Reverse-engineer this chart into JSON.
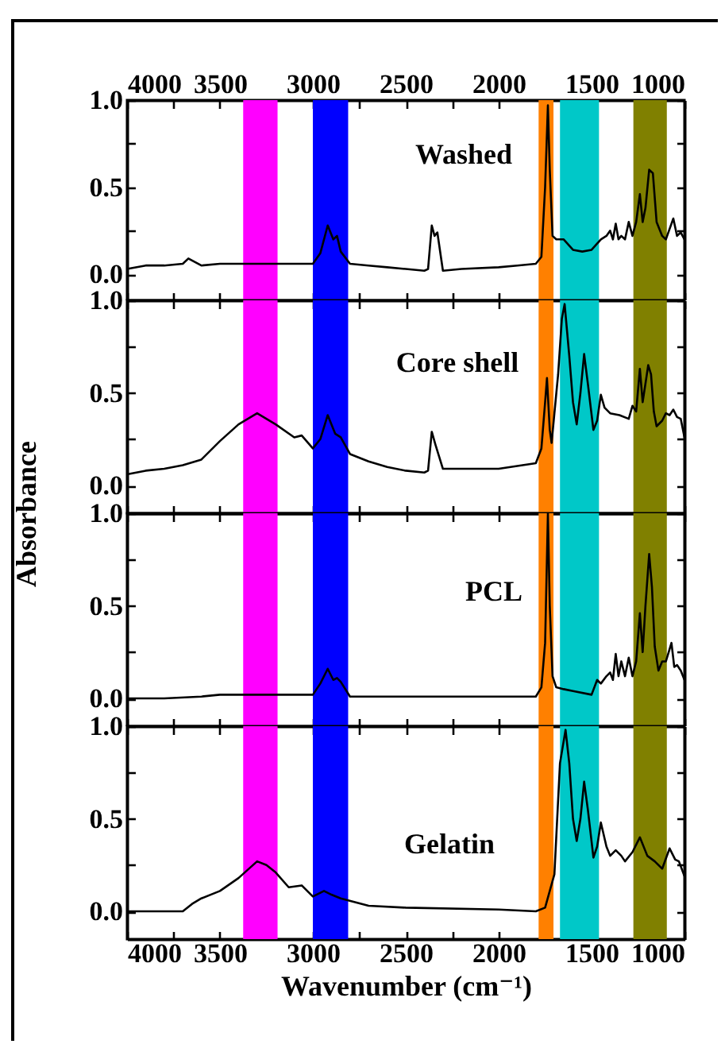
{
  "chart_data": [
    {
      "type": "line",
      "xlim": [
        4000,
        1000
      ],
      "xticks": [
        4000,
        {
          "value": 3750,
          "label": null
        },
        3500,
        {
          "value": 3250,
          "label": null
        },
        3000,
        {
          "value": 2750,
          "label": null
        },
        2500,
        {
          "value": 2250,
          "label": null
        },
        2000,
        {
          "value": 1750,
          "label": null
        },
        1500,
        {
          "value": 1250,
          "label": null
        },
        1000
      ],
      "ylim": [
        -0.15,
        1.0
      ],
      "yticks": [
        {
          "value": 0,
          "label": "0.0"
        },
        {
          "value": 0.25,
          "label": null
        },
        {
          "value": 0.5,
          "label": "0.5"
        },
        {
          "value": 0.75,
          "label": null
        },
        {
          "value": 1,
          "label": "1.0"
        }
      ],
      "grid": false,
      "bands": [
        {
          "axis": "x",
          "from": 3375,
          "to": 3190,
          "color": "#ff00ff"
        },
        {
          "axis": "x",
          "from": 3000,
          "to": 2810,
          "color": "#0000ff"
        },
        {
          "axis": "x",
          "from": 1785,
          "to": 1705,
          "color": "#ff8000"
        },
        {
          "axis": "x",
          "from": 1670,
          "to": 1460,
          "color": "#00c8c8"
        },
        {
          "axis": "x",
          "from": 1275,
          "to": 1095,
          "color": "#808000"
        }
      ],
      "series": [
        {
          "name": "Washed",
          "color": "#000000",
          "x": [
            4000,
            3900,
            3800,
            3700,
            3670,
            3600,
            3500,
            3400,
            3300,
            3200,
            3100,
            3000,
            2960,
            2920,
            2890,
            2870,
            2850,
            2800,
            2700,
            2600,
            2500,
            2400,
            2380,
            2360,
            2345,
            2330,
            2300,
            2200,
            2000,
            1900,
            1800,
            1770,
            1750,
            1735,
            1725,
            1710,
            1690,
            1650,
            1600,
            1550,
            1500,
            1450,
            1420,
            1400,
            1385,
            1370,
            1355,
            1340,
            1320,
            1300,
            1280,
            1260,
            1240,
            1225,
            1210,
            1190,
            1170,
            1150,
            1120,
            1100,
            1080,
            1060,
            1040,
            1020,
            1000
          ],
          "values": [
            0.03,
            0.05,
            0.05,
            0.06,
            0.09,
            0.05,
            0.06,
            0.06,
            0.06,
            0.06,
            0.06,
            0.06,
            0.12,
            0.28,
            0.2,
            0.22,
            0.13,
            0.06,
            0.05,
            0.04,
            0.03,
            0.02,
            0.03,
            0.28,
            0.22,
            0.24,
            0.02,
            0.03,
            0.04,
            0.05,
            0.06,
            0.1,
            0.5,
            0.97,
            0.6,
            0.22,
            0.2,
            0.2,
            0.14,
            0.13,
            0.14,
            0.2,
            0.22,
            0.25,
            0.2,
            0.29,
            0.2,
            0.22,
            0.2,
            0.3,
            0.22,
            0.3,
            0.46,
            0.3,
            0.38,
            0.6,
            0.58,
            0.3,
            0.22,
            0.2,
            0.26,
            0.32,
            0.22,
            0.24,
            0.2
          ]
        }
      ]
    },
    {
      "type": "line",
      "xlim": [
        4000,
        1000
      ],
      "xticks": [
        4000,
        {
          "value": 3750,
          "label": null
        },
        3500,
        {
          "value": 3250,
          "label": null
        },
        3000,
        {
          "value": 2750,
          "label": null
        },
        2500,
        {
          "value": 2250,
          "label": null
        },
        2000,
        {
          "value": 1750,
          "label": null
        },
        1500,
        {
          "value": 1250,
          "label": null
        },
        1000
      ],
      "ylim": [
        -0.15,
        1.0
      ],
      "yticks": [
        {
          "value": 0,
          "label": "0.0"
        },
        {
          "value": 0.25,
          "label": null
        },
        {
          "value": 0.5,
          "label": "0.5"
        },
        {
          "value": 0.75,
          "label": null
        },
        {
          "value": 1,
          "label": "1.0"
        }
      ],
      "tick_labels": "y",
      "grid": false,
      "ylabel": "Absorbance",
      "bands": [
        {
          "axis": "x",
          "from": 3375,
          "to": 3190,
          "color": "#ff00ff"
        },
        {
          "axis": "x",
          "from": 3000,
          "to": 2810,
          "color": "#0000ff"
        },
        {
          "axis": "x",
          "from": 1785,
          "to": 1705,
          "color": "#ff8000"
        },
        {
          "axis": "x",
          "from": 1670,
          "to": 1460,
          "color": "#00c8c8"
        },
        {
          "axis": "x",
          "from": 1275,
          "to": 1095,
          "color": "#808000"
        }
      ],
      "series": [
        {
          "name": "Core shell",
          "color": "#000000",
          "x": [
            4000,
            3900,
            3800,
            3700,
            3600,
            3500,
            3400,
            3300,
            3200,
            3100,
            3060,
            3000,
            2960,
            2920,
            2880,
            2850,
            2800,
            2700,
            2600,
            2500,
            2400,
            2380,
            2360,
            2340,
            2300,
            2200,
            2000,
            1800,
            1770,
            1750,
            1740,
            1725,
            1715,
            1700,
            1680,
            1660,
            1645,
            1620,
            1600,
            1580,
            1560,
            1540,
            1520,
            1490,
            1470,
            1450,
            1430,
            1400,
            1350,
            1300,
            1280,
            1260,
            1240,
            1225,
            1210,
            1195,
            1180,
            1165,
            1150,
            1120,
            1100,
            1080,
            1060,
            1040,
            1020,
            1000
          ],
          "values": [
            0.06,
            0.08,
            0.09,
            0.11,
            0.14,
            0.24,
            0.33,
            0.39,
            0.33,
            0.26,
            0.27,
            0.2,
            0.25,
            0.38,
            0.28,
            0.26,
            0.17,
            0.13,
            0.1,
            0.08,
            0.07,
            0.08,
            0.29,
            0.22,
            0.09,
            0.09,
            0.09,
            0.12,
            0.2,
            0.45,
            0.58,
            0.3,
            0.23,
            0.39,
            0.6,
            0.9,
            0.98,
            0.7,
            0.45,
            0.33,
            0.5,
            0.71,
            0.55,
            0.3,
            0.35,
            0.49,
            0.42,
            0.39,
            0.38,
            0.36,
            0.43,
            0.4,
            0.63,
            0.45,
            0.55,
            0.65,
            0.6,
            0.4,
            0.32,
            0.35,
            0.39,
            0.38,
            0.41,
            0.37,
            0.36,
            0.26
          ]
        }
      ]
    },
    {
      "type": "line",
      "xlim": [
        4000,
        1000
      ],
      "xticks": [
        4000,
        {
          "value": 3750,
          "label": null
        },
        3500,
        {
          "value": 3250,
          "label": null
        },
        3000,
        {
          "value": 2750,
          "label": null
        },
        2500,
        {
          "value": 2250,
          "label": null
        },
        2000,
        {
          "value": 1750,
          "label": null
        },
        1500,
        {
          "value": 1250,
          "label": null
        },
        1000
      ],
      "ylim": [
        -0.15,
        1.0
      ],
      "yticks": [
        {
          "value": 0,
          "label": "0.0"
        },
        {
          "value": 0.25,
          "label": null
        },
        {
          "value": 0.5,
          "label": "0.5"
        },
        {
          "value": 0.75,
          "label": null
        },
        {
          "value": 1,
          "label": "1.0"
        }
      ],
      "tick_labels": "y",
      "grid": false,
      "bands": [
        {
          "axis": "x",
          "from": 3375,
          "to": 3190,
          "color": "#ff00ff"
        },
        {
          "axis": "x",
          "from": 3000,
          "to": 2810,
          "color": "#0000ff"
        },
        {
          "axis": "x",
          "from": 1785,
          "to": 1705,
          "color": "#ff8000"
        },
        {
          "axis": "x",
          "from": 1670,
          "to": 1460,
          "color": "#00c8c8"
        },
        {
          "axis": "x",
          "from": 1275,
          "to": 1095,
          "color": "#808000"
        }
      ],
      "series": [
        {
          "name": "PCL",
          "color": "#000000",
          "x": [
            4000,
            3800,
            3600,
            3500,
            3000,
            2960,
            2920,
            2890,
            2870,
            2850,
            2800,
            2500,
            2350,
            2000,
            1800,
            1770,
            1750,
            1735,
            1725,
            1710,
            1690,
            1650,
            1600,
            1500,
            1470,
            1450,
            1420,
            1400,
            1385,
            1370,
            1355,
            1340,
            1320,
            1300,
            1280,
            1260,
            1240,
            1225,
            1210,
            1190,
            1175,
            1160,
            1140,
            1120,
            1100,
            1085,
            1070,
            1055,
            1040,
            1020,
            1000
          ],
          "values": [
            0,
            0,
            0.01,
            0.02,
            0.02,
            0.08,
            0.16,
            0.1,
            0.11,
            0.09,
            0.01,
            0.01,
            0.01,
            0.01,
            0.01,
            0.06,
            0.3,
            1.0,
            0.5,
            0.12,
            0.06,
            0.05,
            0.04,
            0.02,
            0.1,
            0.08,
            0.12,
            0.14,
            0.1,
            0.24,
            0.12,
            0.2,
            0.12,
            0.22,
            0.12,
            0.2,
            0.46,
            0.25,
            0.5,
            0.78,
            0.6,
            0.28,
            0.15,
            0.2,
            0.2,
            0.25,
            0.3,
            0.17,
            0.18,
            0.15,
            0.1
          ]
        }
      ]
    },
    {
      "type": "line",
      "xlim": [
        4000,
        1000
      ],
      "xticks": [
        4000,
        {
          "value": 3750,
          "label": null
        },
        3500,
        {
          "value": 3250,
          "label": null
        },
        3000,
        {
          "value": 2750,
          "label": null
        },
        2500,
        {
          "value": 2250,
          "label": null
        },
        2000,
        {
          "value": 1750,
          "label": null
        },
        1500,
        {
          "value": 1250,
          "label": null
        },
        1000
      ],
      "ylim": [
        -0.15,
        1.0
      ],
      "yticks": [
        {
          "value": 0,
          "label": "0.0"
        },
        {
          "value": 0.25,
          "label": null
        },
        {
          "value": 0.5,
          "label": "0.5"
        },
        {
          "value": 0.75,
          "label": null
        },
        {
          "value": 1,
          "label": "1.0"
        }
      ],
      "grid": false,
      "xlabel": "Wavenumber (cm⁻¹)",
      "bands": [
        {
          "axis": "x",
          "from": 3375,
          "to": 3190,
          "color": "#ff00ff"
        },
        {
          "axis": "x",
          "from": 3000,
          "to": 2810,
          "color": "#0000ff"
        },
        {
          "axis": "x",
          "from": 1785,
          "to": 1705,
          "color": "#ff8000"
        },
        {
          "axis": "x",
          "from": 1670,
          "to": 1460,
          "color": "#00c8c8"
        },
        {
          "axis": "x",
          "from": 1275,
          "to": 1095,
          "color": "#808000"
        }
      ],
      "series": [
        {
          "name": "Gelatin",
          "color": "#000000",
          "x": [
            4000,
            3800,
            3700,
            3650,
            3600,
            3500,
            3400,
            3300,
            3250,
            3200,
            3130,
            3060,
            3000,
            2940,
            2900,
            2850,
            2700,
            2500,
            2000,
            1800,
            1750,
            1700,
            1670,
            1640,
            1620,
            1600,
            1580,
            1560,
            1540,
            1520,
            1490,
            1470,
            1450,
            1420,
            1400,
            1370,
            1340,
            1320,
            1280,
            1240,
            1200,
            1160,
            1120,
            1080,
            1050,
            1030,
            1000
          ],
          "values": [
            0,
            0,
            0,
            0.04,
            0.07,
            0.11,
            0.18,
            0.27,
            0.25,
            0.21,
            0.13,
            0.14,
            0.08,
            0.11,
            0.09,
            0.07,
            0.03,
            0.02,
            0.01,
            0,
            0.02,
            0.2,
            0.8,
            0.98,
            0.8,
            0.5,
            0.38,
            0.5,
            0.7,
            0.55,
            0.29,
            0.35,
            0.48,
            0.35,
            0.3,
            0.33,
            0.3,
            0.27,
            0.32,
            0.4,
            0.3,
            0.27,
            0.23,
            0.34,
            0.28,
            0.27,
            0.19
          ]
        }
      ]
    }
  ]
}
